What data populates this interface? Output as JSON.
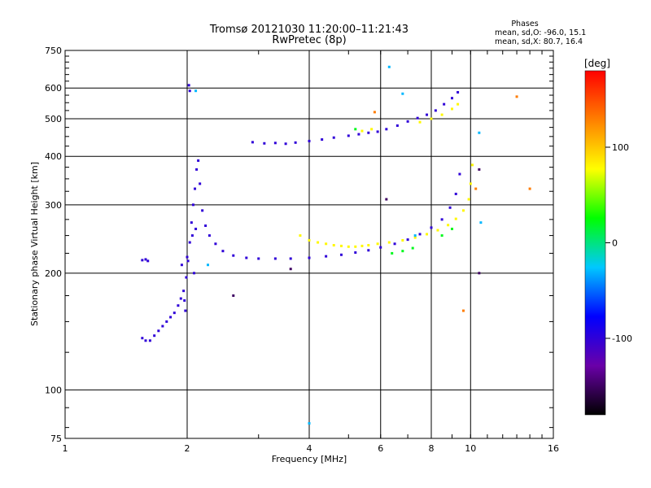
{
  "chart_data": {
    "type": "scatter",
    "title_line1": "Tromsø 20121030 11:20:00–11:21:43",
    "title_line2": "RwPretec (8p)",
    "stats": {
      "heading": "Phases",
      "line_o": "mean, sd,O: -96.0, 15.1",
      "line_x": "mean, sd,X:  80.7, 16.4"
    },
    "xlabel": "Frequency [MHz]",
    "ylabel": "Stationary phase Virtual Height [km]",
    "x_scale": "log",
    "y_scale": "log",
    "xlim": [
      1,
      16
    ],
    "ylim": [
      75,
      750
    ],
    "x_ticks": [
      {
        "value": 1,
        "label": "1"
      },
      {
        "value": 2,
        "label": "2"
      },
      {
        "value": 4,
        "label": "4"
      },
      {
        "value": 6,
        "label": "6"
      },
      {
        "value": 8,
        "label": "8"
      },
      {
        "value": 10,
        "label": "10"
      },
      {
        "value": 16,
        "label": "16"
      }
    ],
    "y_ticks": [
      {
        "value": 75,
        "label": "75"
      },
      {
        "value": 100,
        "label": "100"
      },
      {
        "value": 200,
        "label": "200"
      },
      {
        "value": 300,
        "label": "300"
      },
      {
        "value": 400,
        "label": "400"
      },
      {
        "value": 500,
        "label": "500"
      },
      {
        "value": 600,
        "label": "600"
      },
      {
        "value": 750,
        "label": "750"
      }
    ],
    "grid": true,
    "colorbar": {
      "label": "[deg]",
      "range": [
        -180,
        180
      ],
      "ticks": [
        {
          "value": 100,
          "label": "100"
        },
        {
          "value": 0,
          "label": "0"
        },
        {
          "value": -100,
          "label": "-100"
        }
      ],
      "colors": [
        "#000000",
        "#6a00a8",
        "#0000ff",
        "#00c8ff",
        "#00ff00",
        "#ffff00",
        "#ff8000",
        "#ff0000"
      ]
    },
    "series": [
      {
        "phase_deg": -100,
        "points": [
          [
            1.55,
            136
          ],
          [
            1.58,
            134
          ],
          [
            1.62,
            134
          ],
          [
            1.66,
            138
          ],
          [
            1.7,
            142
          ],
          [
            1.74,
            146
          ],
          [
            1.78,
            150
          ],
          [
            1.82,
            154
          ],
          [
            1.86,
            158
          ],
          [
            1.9,
            165
          ],
          [
            1.93,
            172
          ],
          [
            1.96,
            180
          ],
          [
            1.99,
            195
          ],
          [
            2.01,
            215
          ],
          [
            2.03,
            240
          ],
          [
            2.05,
            270
          ],
          [
            2.07,
            300
          ],
          [
            2.09,
            330
          ],
          [
            2.11,
            370
          ],
          [
            2.13,
            390
          ],
          [
            2.15,
            340
          ],
          [
            2.18,
            290
          ],
          [
            2.22,
            265
          ],
          [
            2.27,
            250
          ],
          [
            2.35,
            238
          ],
          [
            2.45,
            228
          ],
          [
            2.6,
            222
          ],
          [
            2.8,
            219
          ],
          [
            3.0,
            218
          ],
          [
            3.3,
            218
          ],
          [
            3.6,
            218
          ],
          [
            4.0,
            219
          ],
          [
            4.4,
            221
          ],
          [
            4.8,
            223
          ],
          [
            5.2,
            226
          ],
          [
            5.6,
            229
          ],
          [
            6.0,
            233
          ],
          [
            6.5,
            238
          ],
          [
            7.0,
            244
          ],
          [
            7.5,
            252
          ],
          [
            8.0,
            262
          ],
          [
            8.5,
            275
          ],
          [
            8.9,
            295
          ],
          [
            9.2,
            320
          ],
          [
            9.4,
            360
          ],
          [
            1.55,
            216
          ],
          [
            1.58,
            217
          ],
          [
            1.6,
            215
          ],
          [
            1.98,
            160
          ],
          [
            1.97,
            170
          ],
          [
            2.02,
            610
          ],
          [
            2.03,
            590
          ],
          [
            2.0,
            220
          ],
          [
            2.08,
            200
          ],
          [
            1.94,
            210
          ],
          [
            2.06,
            250
          ],
          [
            2.1,
            260
          ],
          [
            2.9,
            435
          ],
          [
            3.1,
            432
          ],
          [
            3.3,
            433
          ],
          [
            3.5,
            431
          ],
          [
            3.7,
            434
          ],
          [
            4.0,
            438
          ],
          [
            4.3,
            442
          ],
          [
            4.6,
            447
          ],
          [
            5.0,
            452
          ],
          [
            5.3,
            456
          ],
          [
            5.6,
            460
          ],
          [
            5.9,
            463
          ],
          [
            6.2,
            470
          ],
          [
            6.6,
            480
          ],
          [
            7.0,
            492
          ],
          [
            7.4,
            502
          ],
          [
            7.8,
            512
          ],
          [
            8.2,
            525
          ],
          [
            8.6,
            545
          ],
          [
            9.0,
            565
          ],
          [
            9.3,
            585
          ]
        ]
      },
      {
        "phase_deg": 80,
        "points": [
          [
            4.0,
            243
          ],
          [
            4.2,
            240
          ],
          [
            4.4,
            238
          ],
          [
            4.6,
            236
          ],
          [
            4.8,
            235
          ],
          [
            5.0,
            234
          ],
          [
            5.2,
            234
          ],
          [
            5.4,
            235
          ],
          [
            5.6,
            236
          ],
          [
            5.9,
            238
          ],
          [
            6.3,
            240
          ],
          [
            6.8,
            243
          ],
          [
            7.3,
            247
          ],
          [
            7.8,
            252
          ],
          [
            8.3,
            258
          ],
          [
            8.8,
            266
          ],
          [
            9.2,
            276
          ],
          [
            9.6,
            290
          ],
          [
            9.9,
            310
          ],
          [
            10.0,
            340
          ],
          [
            10.1,
            380
          ],
          [
            7.5,
            490
          ],
          [
            8.0,
            500
          ],
          [
            8.5,
            512
          ],
          [
            9.0,
            530
          ],
          [
            9.3,
            545
          ],
          [
            5.4,
            465
          ],
          [
            5.7,
            470
          ],
          [
            3.8,
            250
          ]
        ]
      },
      {
        "phase_deg": 20,
        "points": [
          [
            6.4,
            225
          ],
          [
            6.8,
            228
          ],
          [
            7.2,
            232
          ],
          [
            8.5,
            250
          ],
          [
            9.0,
            260
          ],
          [
            5.2,
            470
          ]
        ]
      },
      {
        "phase_deg": -30,
        "points": [
          [
            6.3,
            680
          ],
          [
            6.8,
            580
          ],
          [
            2.1,
            590
          ],
          [
            10.5,
            460
          ],
          [
            10.6,
            270
          ],
          [
            7.3,
            250
          ],
          [
            2.25,
            210
          ],
          [
            4.0,
            82
          ]
        ]
      },
      {
        "phase_deg": 130,
        "points": [
          [
            13.0,
            570
          ],
          [
            14.0,
            330
          ],
          [
            10.3,
            330
          ],
          [
            9.6,
            160
          ],
          [
            5.8,
            520
          ]
        ]
      },
      {
        "phase_deg": -150,
        "points": [
          [
            2.6,
            175
          ],
          [
            3.6,
            205
          ],
          [
            10.5,
            370
          ],
          [
            10.5,
            200
          ],
          [
            6.2,
            310
          ]
        ]
      }
    ]
  }
}
